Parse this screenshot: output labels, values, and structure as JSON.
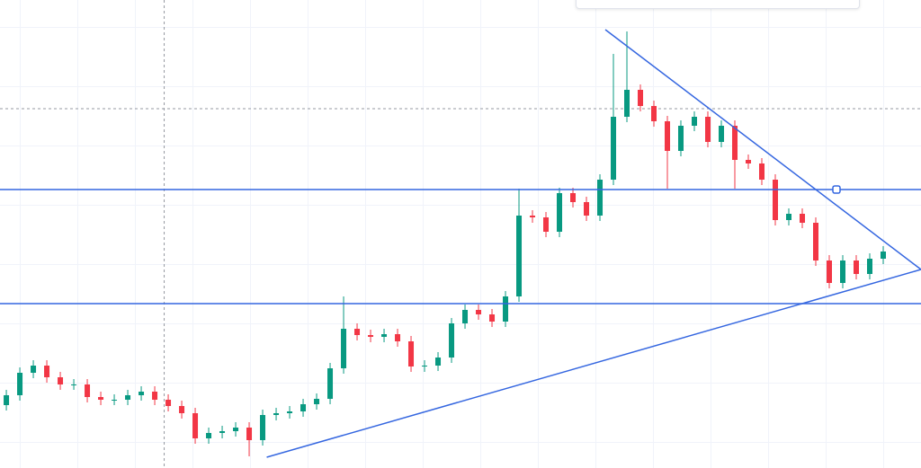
{
  "chart_data": {
    "type": "candlestick",
    "up_color": "#089981",
    "down_color": "#f23645",
    "line_color": "#3466e0",
    "xlim": [
      -0.47,
      67.8
    ],
    "ylim": [
      100,
      621
    ],
    "open": [
      170,
      181,
      206,
      214,
      201,
      193,
      193,
      179,
      176,
      176,
      181,
      185,
      176,
      169,
      161,
      133,
      139,
      141,
      145,
      131,
      159,
      161,
      163,
      171,
      177,
      211,
      255,
      248,
      246,
      249,
      241,
      213,
      214,
      223,
      261,
      276,
      271,
      263,
      291,
      381,
      379,
      363,
      406,
      396,
      381,
      421,
      491,
      521,
      503,
      486,
      453,
      481,
      491,
      463,
      481,
      443,
      439,
      421,
      376,
      383,
      373,
      331,
      306,
      331,
      316,
      333
    ],
    "high": [
      187,
      212,
      220,
      220,
      207,
      199,
      199,
      185,
      182,
      187,
      191,
      191,
      182,
      175,
      167,
      145,
      147,
      151,
      151,
      165,
      167,
      169,
      177,
      183,
      217,
      291,
      261,
      254,
      255,
      255,
      247,
      220,
      229,
      267,
      282,
      282,
      277,
      297,
      411,
      387,
      385,
      412,
      412,
      402,
      427,
      561,
      586,
      527,
      509,
      492,
      487,
      497,
      497,
      487,
      487,
      449,
      445,
      427,
      389,
      389,
      379,
      337,
      337,
      337,
      339,
      347
    ],
    "low": [
      164,
      175,
      200,
      195,
      187,
      187,
      173,
      170,
      170,
      170,
      175,
      170,
      163,
      155,
      127,
      127,
      133,
      135,
      113,
      125,
      153,
      155,
      157,
      165,
      171,
      205,
      242,
      240,
      240,
      235,
      207,
      207,
      208,
      217,
      255,
      265,
      257,
      257,
      285,
      373,
      357,
      357,
      390,
      375,
      375,
      415,
      485,
      497,
      480,
      411,
      447,
      475,
      457,
      457,
      411,
      433,
      415,
      370,
      370,
      367,
      325,
      300,
      300,
      310,
      310,
      327
    ],
    "close": [
      181,
      206,
      214,
      201,
      193,
      193,
      179,
      176,
      176,
      181,
      185,
      176,
      169,
      161,
      133,
      139,
      141,
      145,
      131,
      159,
      161,
      163,
      171,
      177,
      211,
      255,
      248,
      246,
      249,
      241,
      213,
      214,
      223,
      261,
      276,
      271,
      263,
      291,
      381,
      379,
      363,
      406,
      396,
      381,
      421,
      491,
      521,
      503,
      486,
      453,
      481,
      491,
      463,
      481,
      443,
      439,
      421,
      376,
      383,
      373,
      331,
      306,
      331,
      316,
      333,
      341
    ],
    "hlines": [
      410,
      283
    ],
    "dashed_hline": 500,
    "vline": 11.7,
    "trendlines": [
      {
        "x": [
          44.4,
          67.8
        ],
        "y": [
          588,
          321
        ]
      },
      {
        "x": [
          19.3,
          67.8
        ],
        "y": [
          112,
          321
        ]
      }
    ]
  }
}
